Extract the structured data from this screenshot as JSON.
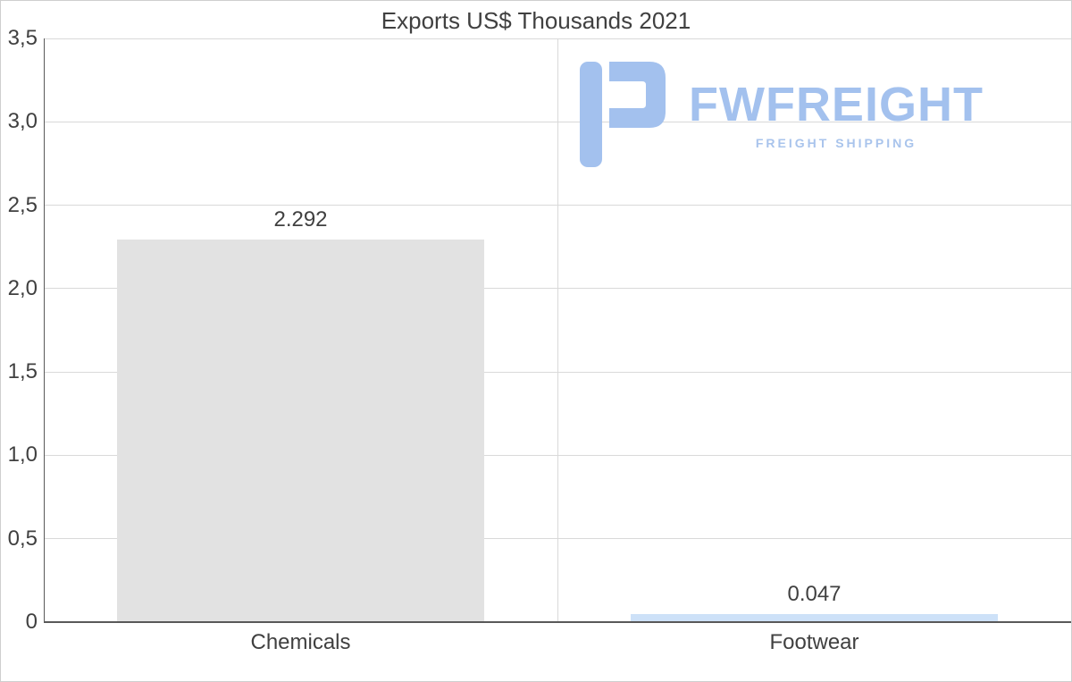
{
  "chart_data": {
    "type": "bar",
    "title": "Exports US$ Thousands 2021",
    "categories": [
      "Chemicals",
      "Footwear"
    ],
    "values": [
      2.292,
      0.047
    ],
    "value_labels": [
      "2.292",
      "0.047"
    ],
    "ylim": [
      0,
      3.5
    ],
    "ytick_step": 0.5,
    "ytick_labels": [
      "0",
      "0,5",
      "1,0",
      "1,5",
      "2,0",
      "2,5",
      "3,0",
      "3,5"
    ],
    "grid": true,
    "legend": "none",
    "bar_colors": [
      "#e2e2e2",
      "#cde1f8"
    ]
  },
  "logo": {
    "name": "FWFREIGHT",
    "subtitle": "FREIGHT SHIPPING",
    "color": "#a3c1ee",
    "subtitle_color": "#a9c4ec"
  }
}
